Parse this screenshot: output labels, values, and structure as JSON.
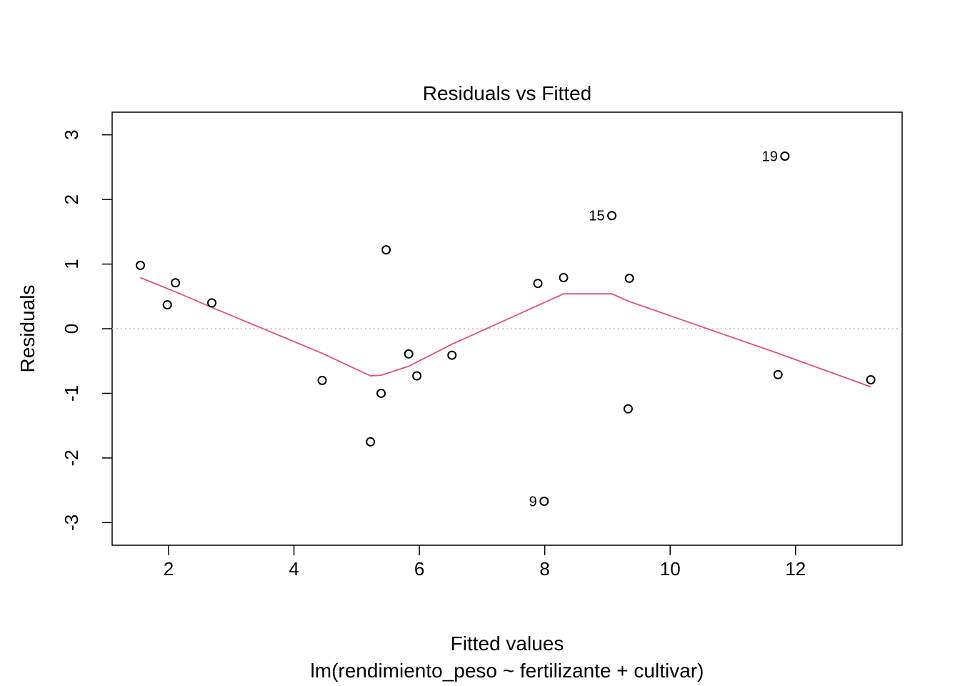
{
  "chart_data": {
    "type": "scatter",
    "title": "Residuals vs Fitted",
    "xlabel": "Fitted values",
    "subtitle": "lm(rendimiento_peso ~ fertilizante + cultivar)",
    "ylabel": "Residuals",
    "xlim": [
      1.1,
      13.7
    ],
    "ylim": [
      -3.35,
      3.35
    ],
    "xticks": [
      2,
      4,
      6,
      8,
      10,
      12
    ],
    "yticks": [
      -3,
      -2,
      -1,
      0,
      1,
      2,
      3
    ],
    "reference_line": {
      "y": 0,
      "style": "dotted",
      "color": "#bebebe"
    },
    "points": [
      {
        "x": 1.55,
        "y": 0.98
      },
      {
        "x": 1.98,
        "y": 0.37
      },
      {
        "x": 2.11,
        "y": 0.71
      },
      {
        "x": 2.69,
        "y": 0.4
      },
      {
        "x": 4.45,
        "y": -0.8
      },
      {
        "x": 5.22,
        "y": -1.75
      },
      {
        "x": 5.39,
        "y": -1.0
      },
      {
        "x": 5.47,
        "y": 1.22
      },
      {
        "x": 5.83,
        "y": -0.39
      },
      {
        "x": 5.96,
        "y": -0.73
      },
      {
        "x": 6.52,
        "y": -0.41
      },
      {
        "x": 7.89,
        "y": 0.7
      },
      {
        "x": 7.99,
        "y": -2.67,
        "label": "9"
      },
      {
        "x": 8.3,
        "y": 0.79
      },
      {
        "x": 9.07,
        "y": 1.75,
        "label": "15"
      },
      {
        "x": 9.33,
        "y": -1.24
      },
      {
        "x": 9.35,
        "y": 0.78
      },
      {
        "x": 11.72,
        "y": -0.71
      },
      {
        "x": 11.83,
        "y": 2.67,
        "label": "19"
      },
      {
        "x": 13.2,
        "y": -0.79
      }
    ],
    "smooth": {
      "color": "#DF536B",
      "x": [
        1.55,
        2.11,
        2.69,
        4.45,
        5.22,
        5.39,
        5.83,
        6.52,
        7.89,
        8.3,
        9.07,
        9.35,
        11.72,
        13.2
      ],
      "y": [
        0.79,
        0.57,
        0.33,
        -0.38,
        -0.73,
        -0.72,
        -0.58,
        -0.24,
        0.36,
        0.54,
        0.54,
        0.42,
        -0.38,
        -0.9
      ]
    }
  }
}
